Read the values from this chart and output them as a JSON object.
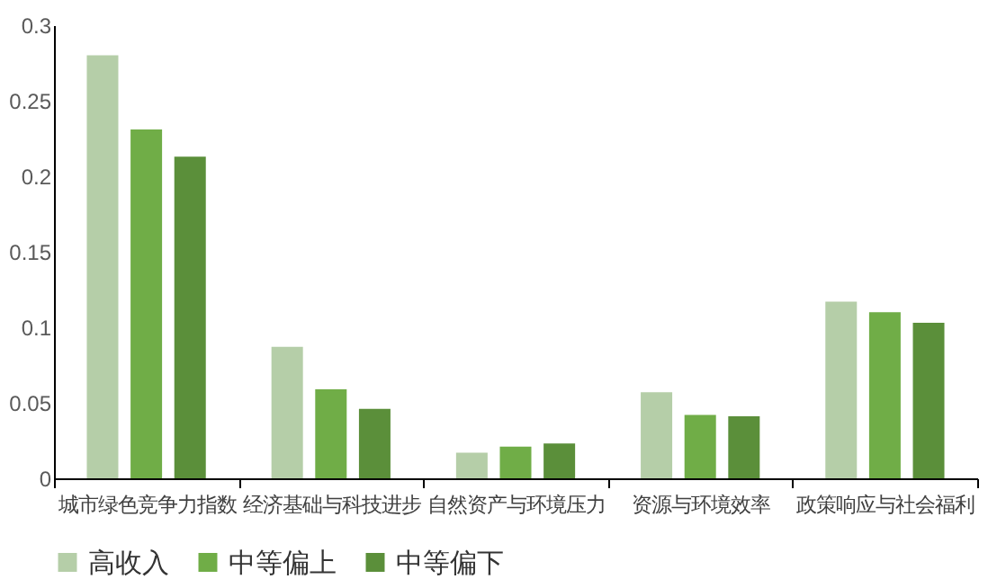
{
  "chart_data": {
    "type": "bar",
    "categories": [
      "城市绿色竞争力指数",
      "经济基础与科技进步",
      "自然资产与环境压力",
      "资源与环境效率",
      "政策响应与社会福利"
    ],
    "series": [
      {
        "name": "高收入",
        "color": "#b5cea8",
        "values": [
          0.28,
          0.087,
          0.017,
          0.057,
          0.117
        ]
      },
      {
        "name": "中等偏上",
        "color": "#70ad47",
        "values": [
          0.231,
          0.059,
          0.021,
          0.042,
          0.11
        ]
      },
      {
        "name": "中等偏下",
        "color": "#5b8f3a",
        "values": [
          0.213,
          0.046,
          0.023,
          0.041,
          0.103
        ]
      }
    ],
    "ylim": [
      0,
      0.3
    ],
    "yticks": [
      0,
      0.05,
      0.1,
      0.15,
      0.2,
      0.25,
      0.3
    ],
    "grid": false,
    "legend": "bottom"
  }
}
